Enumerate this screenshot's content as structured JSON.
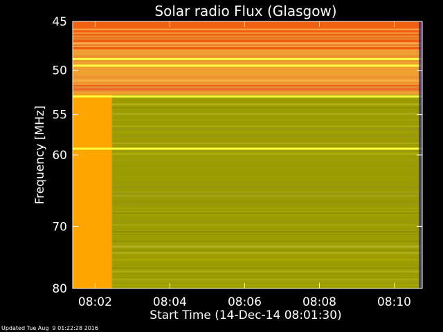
{
  "chart_data": {
    "type": "heatmap",
    "title": "Solar radio Flux (Glasgow)",
    "ylabel": "Frequency [MHz]",
    "xlabel": "Start Time (14-Dec-14 08:01:30)",
    "footer": "Updated Tue Aug  9 01:22:28 2016",
    "x_range_minutes": [
      1.4,
      10.75
    ],
    "y_range_mhz": [
      45,
      80
    ],
    "y_scale": "log",
    "yticks": [
      {
        "label": "45",
        "value": 45
      },
      {
        "label": "50",
        "value": 50
      },
      {
        "label": "55",
        "value": 55
      },
      {
        "label": "60",
        "value": 60
      },
      {
        "label": "70",
        "value": 70
      },
      {
        "label": "80",
        "value": 80
      }
    ],
    "xticks": [
      {
        "label": "08:02",
        "value": 2
      },
      {
        "label": "08:04",
        "value": 4
      },
      {
        "label": "08:06",
        "value": 6
      },
      {
        "label": "08:08",
        "value": 8
      },
      {
        "label": "08:10",
        "value": 10
      }
    ],
    "colors": {
      "background": "#000000",
      "early_band": "#ffa500",
      "lower_band": "#9c9c00",
      "upper_band": "#f0a030",
      "top_band": "#f06010",
      "bright_line": "#ffff40"
    },
    "bright_lines_mhz": [
      48.8,
      49.5,
      52.9,
      59.2
    ],
    "transition_time_minutes": 2.45
  }
}
